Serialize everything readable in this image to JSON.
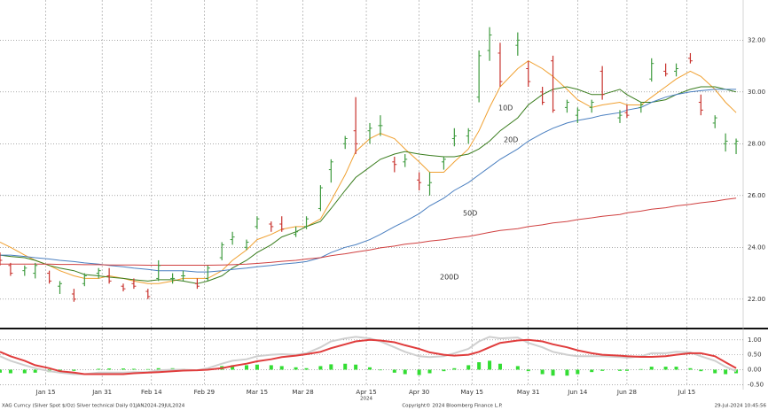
{
  "chart_data": [
    {
      "type": "ohlc",
      "x": [
        "2024-01-02",
        "2024-01-05",
        "2024-01-09",
        "2024-01-12",
        "2024-01-16",
        "2024-01-19",
        "2024-01-23",
        "2024-01-26",
        "2024-01-30",
        "2024-02-02",
        "2024-02-06",
        "2024-02-09",
        "2024-02-13",
        "2024-02-16",
        "2024-02-20",
        "2024-02-23",
        "2024-02-27",
        "2024-03-01",
        "2024-03-05",
        "2024-03-08",
        "2024-03-12",
        "2024-03-15",
        "2024-03-19",
        "2024-03-22",
        "2024-03-26",
        "2024-03-29",
        "2024-04-02",
        "2024-04-05",
        "2024-04-09",
        "2024-04-12",
        "2024-04-16",
        "2024-04-19",
        "2024-04-23",
        "2024-04-26",
        "2024-04-30",
        "2024-05-03",
        "2024-05-07",
        "2024-05-10",
        "2024-05-14",
        "2024-05-17",
        "2024-05-20",
        "2024-05-23",
        "2024-05-28",
        "2024-05-31",
        "2024-06-04",
        "2024-06-07",
        "2024-06-11",
        "2024-06-14",
        "2024-06-18",
        "2024-06-21",
        "2024-06-26",
        "2024-06-28",
        "2024-07-02",
        "2024-07-05",
        "2024-07-09",
        "2024-07-12",
        "2024-07-16",
        "2024-07-19",
        "2024-07-23",
        "2024-07-26",
        "2024-07-29"
      ],
      "open": [
        23.6,
        23.3,
        23.1,
        23.0,
        23.0,
        22.5,
        22.2,
        22.6,
        23.0,
        22.9,
        22.5,
        22.6,
        22.3,
        22.8,
        22.8,
        22.9,
        22.6,
        22.8,
        23.6,
        24.3,
        24.0,
        24.8,
        24.9,
        24.9,
        24.5,
        24.8,
        25.5,
        27.0,
        28.0,
        28.5,
        28.5,
        28.7,
        27.3,
        27.3,
        26.6,
        26.4,
        27.3,
        28.2,
        28.3,
        29.8,
        31.6,
        31.5,
        31.8,
        30.9,
        30.0,
        31.2,
        29.4,
        29.1,
        29.4,
        30.8,
        29.0,
        29.2,
        29.4,
        30.5,
        30.8,
        30.8,
        31.3,
        29.6,
        28.8,
        28.0,
        28.0
      ],
      "high": [
        23.8,
        23.4,
        23.3,
        23.4,
        23.1,
        22.7,
        22.4,
        23.0,
        23.2,
        23.2,
        22.6,
        22.8,
        22.4,
        23.5,
        23.0,
        23.1,
        22.8,
        23.3,
        24.2,
        24.6,
        24.3,
        25.2,
        25.0,
        25.2,
        24.8,
        25.2,
        26.4,
        27.4,
        28.3,
        29.8,
        28.8,
        29.1,
        27.5,
        27.6,
        26.9,
        26.9,
        27.5,
        28.6,
        28.6,
        31.6,
        32.5,
        31.9,
        32.3,
        31.2,
        30.2,
        31.4,
        29.7,
        29.4,
        29.7,
        31.0,
        29.3,
        29.5,
        29.6,
        31.3,
        31.1,
        31.1,
        31.5,
        29.9,
        29.1,
        28.4,
        28.2
      ],
      "low": [
        23.3,
        22.9,
        22.9,
        22.8,
        22.6,
        22.2,
        21.9,
        22.5,
        22.8,
        22.6,
        22.3,
        22.4,
        22.0,
        22.7,
        22.6,
        22.7,
        22.4,
        22.7,
        23.5,
        24.1,
        23.9,
        24.7,
        24.6,
        24.6,
        24.4,
        24.7,
        25.4,
        26.5,
        27.8,
        27.6,
        28.0,
        28.3,
        26.9,
        27.1,
        26.2,
        26.0,
        27.0,
        27.9,
        28.0,
        29.6,
        31.2,
        30.2,
        31.4,
        30.2,
        29.5,
        29.2,
        29.2,
        28.8,
        29.2,
        29.7,
        28.8,
        29.0,
        29.2,
        30.4,
        30.6,
        30.6,
        31.1,
        29.1,
        28.6,
        27.7,
        27.6
      ],
      "close": [
        23.5,
        23.0,
        23.2,
        23.3,
        22.7,
        22.6,
        22.0,
        22.9,
        23.1,
        22.7,
        22.4,
        22.5,
        22.1,
        23.3,
        22.8,
        22.9,
        22.5,
        23.2,
        24.1,
        24.4,
        24.2,
        25.1,
        24.8,
        24.7,
        24.6,
        25.1,
        26.3,
        27.3,
        28.2,
        28.0,
        28.6,
        28.7,
        27.2,
        27.4,
        26.5,
        26.5,
        27.4,
        28.3,
        28.5,
        31.4,
        32.2,
        30.4,
        32.0,
        30.4,
        29.6,
        29.3,
        29.6,
        29.3,
        29.6,
        29.9,
        29.1,
        29.1,
        29.5,
        31.1,
        30.7,
        30.9,
        31.2,
        29.3,
        29.0,
        28.1,
        28.1
      ],
      "up_color": "#3f9b3f",
      "down_color": "#c8322d",
      "series": [
        {
          "name": "10D",
          "color": "#f0a030",
          "values": [
            24.2,
            24.0,
            23.7,
            23.5,
            23.3,
            23.1,
            22.9,
            22.8,
            22.8,
            22.9,
            22.8,
            22.7,
            22.6,
            22.6,
            22.7,
            22.8,
            22.8,
            22.8,
            23.1,
            23.5,
            23.9,
            24.3,
            24.5,
            24.7,
            24.8,
            24.8,
            25.1,
            25.8,
            26.8,
            27.7,
            28.2,
            28.4,
            28.2,
            27.8,
            27.3,
            26.9,
            26.9,
            27.3,
            27.8,
            28.5,
            29.4,
            30.2,
            30.9,
            31.2,
            30.9,
            30.6,
            30.1,
            29.7,
            29.4,
            29.5,
            29.6,
            29.5,
            29.5,
            29.8,
            30.2,
            30.5,
            30.8,
            30.6,
            30.1,
            29.6,
            29.2
          ]
        },
        {
          "name": "20D",
          "color": "#3a7d1e",
          "values": [
            23.7,
            23.65,
            23.6,
            23.5,
            23.3,
            23.2,
            23.1,
            22.95,
            22.9,
            22.85,
            22.8,
            22.75,
            22.7,
            22.75,
            22.75,
            22.7,
            22.6,
            22.7,
            22.9,
            23.2,
            23.5,
            23.8,
            24.1,
            24.4,
            24.6,
            24.8,
            25.0,
            25.5,
            26.2,
            26.7,
            27.1,
            27.4,
            27.6,
            27.7,
            27.6,
            27.55,
            27.5,
            27.5,
            27.6,
            27.8,
            28.1,
            28.5,
            29.0,
            29.5,
            29.9,
            30.1,
            30.2,
            30.1,
            29.9,
            29.9,
            30.1,
            29.9,
            29.6,
            29.6,
            29.7,
            29.9,
            30.1,
            30.2,
            30.2,
            30.1,
            30.0
          ]
        },
        {
          "name": "50D",
          "color": "#4a7fc0",
          "values": [
            23.7,
            23.7,
            23.65,
            23.6,
            23.55,
            23.5,
            23.45,
            23.4,
            23.35,
            23.3,
            23.25,
            23.2,
            23.15,
            23.1,
            23.1,
            23.1,
            23.05,
            23.05,
            23.1,
            23.15,
            23.2,
            23.25,
            23.3,
            23.35,
            23.4,
            23.45,
            23.6,
            23.8,
            24.0,
            24.1,
            24.3,
            24.5,
            24.8,
            25.0,
            25.3,
            25.6,
            25.9,
            26.2,
            26.5,
            26.8,
            27.1,
            27.4,
            27.8,
            28.1,
            28.4,
            28.6,
            28.8,
            28.9,
            29.0,
            29.1,
            29.2,
            29.3,
            29.4,
            29.6,
            29.8,
            29.9,
            30.0,
            30.05,
            30.1,
            30.1,
            30.1
          ]
        },
        {
          "name": "200D",
          "color": "#d04040",
          "values": [
            23.35,
            23.35,
            23.35,
            23.35,
            23.35,
            23.34,
            23.34,
            23.33,
            23.33,
            23.32,
            23.32,
            23.32,
            23.31,
            23.31,
            23.31,
            23.31,
            23.31,
            23.31,
            23.32,
            23.33,
            23.35,
            23.38,
            23.42,
            23.46,
            23.5,
            23.55,
            23.6,
            23.68,
            23.75,
            23.82,
            23.9,
            23.98,
            24.05,
            24.12,
            24.18,
            24.24,
            24.3,
            24.36,
            24.42,
            24.5,
            24.58,
            24.65,
            24.72,
            24.8,
            24.87,
            24.94,
            25.0,
            25.07,
            25.14,
            25.2,
            25.27,
            25.33,
            25.4,
            25.47,
            25.53,
            25.6,
            25.66,
            25.72,
            25.78,
            25.85,
            25.9
          ]
        }
      ],
      "xlim": [
        "2024-01-02",
        "2024-07-31"
      ],
      "xticks": [
        {
          "value": "2024-01-15",
          "label": "Jan 15"
        },
        {
          "value": "2024-01-31",
          "label": "Jan 31"
        },
        {
          "value": "2024-02-14",
          "label": "Feb 14"
        },
        {
          "value": "2024-02-29",
          "label": "Feb 29"
        },
        {
          "value": "2024-03-15",
          "label": "Mar 15"
        },
        {
          "value": "2024-03-28",
          "label": "Mar 28"
        },
        {
          "value": "2024-04-15",
          "label": "Apr 15"
        },
        {
          "value": "2024-04-30",
          "label": "Apr 30"
        },
        {
          "value": "2024-05-15",
          "label": "May 15"
        },
        {
          "value": "2024-05-31",
          "label": "May 31"
        },
        {
          "value": "2024-06-14",
          "label": "Jun 14"
        },
        {
          "value": "2024-06-28",
          "label": "Jun 28"
        },
        {
          "value": "2024-07-15",
          "label": "Jul 15"
        }
      ],
      "x_year": "2024",
      "ylim": [
        20.9,
        33.55
      ],
      "yticks": [
        {
          "value": 22,
          "label": "22.00"
        },
        {
          "value": 24,
          "label": "24.00"
        },
        {
          "value": 26,
          "label": "26.00"
        },
        {
          "value": 28,
          "label": "28.00"
        },
        {
          "value": 30,
          "label": "30.00"
        },
        {
          "value": 32,
          "label": "32.00"
        }
      ],
      "grid": true
    },
    {
      "type": "macd",
      "series": [
        {
          "color": "#cfcfcf",
          "values": [
            0.45,
            0.3,
            0.15,
            0.05,
            -0.05,
            -0.1,
            -0.15,
            -0.15,
            -0.1,
            -0.1,
            -0.1,
            -0.08,
            -0.08,
            -0.02,
            0.0,
            0.0,
            -0.02,
            0.05,
            0.2,
            0.3,
            0.35,
            0.45,
            0.5,
            0.52,
            0.5,
            0.55,
            0.75,
            0.95,
            1.05,
            1.1,
            1.05,
            0.95,
            0.75,
            0.6,
            0.45,
            0.42,
            0.45,
            0.55,
            0.7,
            0.95,
            1.1,
            1.05,
            1.08,
            0.9,
            0.75,
            0.6,
            0.5,
            0.45,
            0.45,
            0.45,
            0.42,
            0.4,
            0.45,
            0.55,
            0.55,
            0.6,
            0.58,
            0.45,
            0.3,
            0.1,
            -0.05
          ]
        },
        {
          "color": "#e03c3c",
          "values": [
            0.6,
            0.45,
            0.3,
            0.15,
            0.05,
            -0.05,
            -0.1,
            -0.15,
            -0.15,
            -0.15,
            -0.15,
            -0.12,
            -0.1,
            -0.08,
            -0.05,
            -0.03,
            -0.02,
            0.0,
            0.05,
            0.12,
            0.2,
            0.28,
            0.35,
            0.42,
            0.47,
            0.52,
            0.6,
            0.72,
            0.85,
            0.95,
            1.0,
            0.98,
            0.92,
            0.82,
            0.7,
            0.58,
            0.5,
            0.47,
            0.5,
            0.6,
            0.75,
            0.9,
            0.98,
            1.0,
            0.95,
            0.85,
            0.75,
            0.65,
            0.55,
            0.5,
            0.47,
            0.45,
            0.43,
            0.43,
            0.45,
            0.5,
            0.55,
            0.55,
            0.45,
            0.25,
            0.05
          ]
        }
      ],
      "histogram": {
        "color": "#33dd33",
        "values": [
          -0.1,
          -0.12,
          -0.12,
          -0.1,
          -0.08,
          -0.05,
          -0.04,
          0.0,
          0.03,
          0.04,
          0.04,
          0.03,
          0.02,
          0.05,
          0.05,
          0.03,
          0.0,
          0.05,
          0.12,
          0.15,
          0.15,
          0.17,
          0.15,
          0.12,
          0.08,
          0.05,
          0.12,
          0.18,
          0.2,
          0.17,
          0.08,
          -0.02,
          -0.1,
          -0.15,
          -0.18,
          -0.12,
          -0.05,
          0.05,
          0.15,
          0.25,
          0.3,
          0.2,
          0.12,
          -0.05,
          -0.15,
          -0.2,
          -0.2,
          -0.15,
          -0.08,
          -0.04,
          -0.04,
          -0.04,
          0.02,
          0.1,
          0.1,
          0.1,
          0.05,
          -0.05,
          -0.12,
          -0.15,
          -0.12
        ]
      },
      "ylim": [
        -0.55,
        1.35
      ],
      "yticks": [
        {
          "value": -0.5,
          "label": "-0.50"
        },
        {
          "value": 0,
          "label": "0.00"
        },
        {
          "value": 0.5,
          "label": "0.50"
        },
        {
          "value": 1,
          "label": "1.00"
        }
      ],
      "grid": true
    }
  ],
  "footer": {
    "left": "XAG Curncy (Silver Spot  $/Oz) Silver technical  Daily 01JAN2024-29JUL2024",
    "center": "Copyright© 2024 Bloomberg Finance L.P.",
    "right": "29-Jul-2024 10:45:56"
  }
}
